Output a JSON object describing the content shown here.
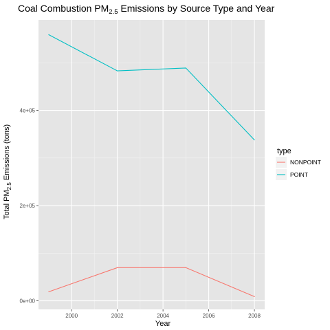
{
  "chart_data": {
    "type": "line",
    "title": {
      "prefix": "Coal Combustion PM",
      "subscript": "2.5",
      "suffix": " Emissions by Source Type and Year"
    },
    "xlabel": "Year",
    "ylabel": {
      "prefix": "Total PM",
      "subscript": "2.5",
      "suffix": " Emissions (tons)"
    },
    "x": [
      1999,
      2002,
      2005,
      2008
    ],
    "xlim": [
      1998.55,
      2008.45
    ],
    "ylim": [
      -18000,
      590000
    ],
    "x_ticks": [
      2000,
      2002,
      2004,
      2006,
      2008
    ],
    "x_tick_labels": [
      "2000",
      "2002",
      "2004",
      "2006",
      "2008"
    ],
    "y_ticks": [
      0,
      200000,
      400000
    ],
    "y_tick_labels": [
      "0e+00",
      "2e+05",
      "4e+05"
    ],
    "grid": true,
    "panel_background": "#e5e5e5",
    "legend": {
      "title": "type",
      "placement": "right"
    },
    "series": [
      {
        "name": "NONPOINT",
        "color": "#f8766d",
        "values": [
          19000,
          69700,
          69700,
          8900
        ]
      },
      {
        "name": "POINT",
        "color": "#00bfc4",
        "values": [
          559000,
          483000,
          489000,
          338000
        ]
      }
    ]
  }
}
